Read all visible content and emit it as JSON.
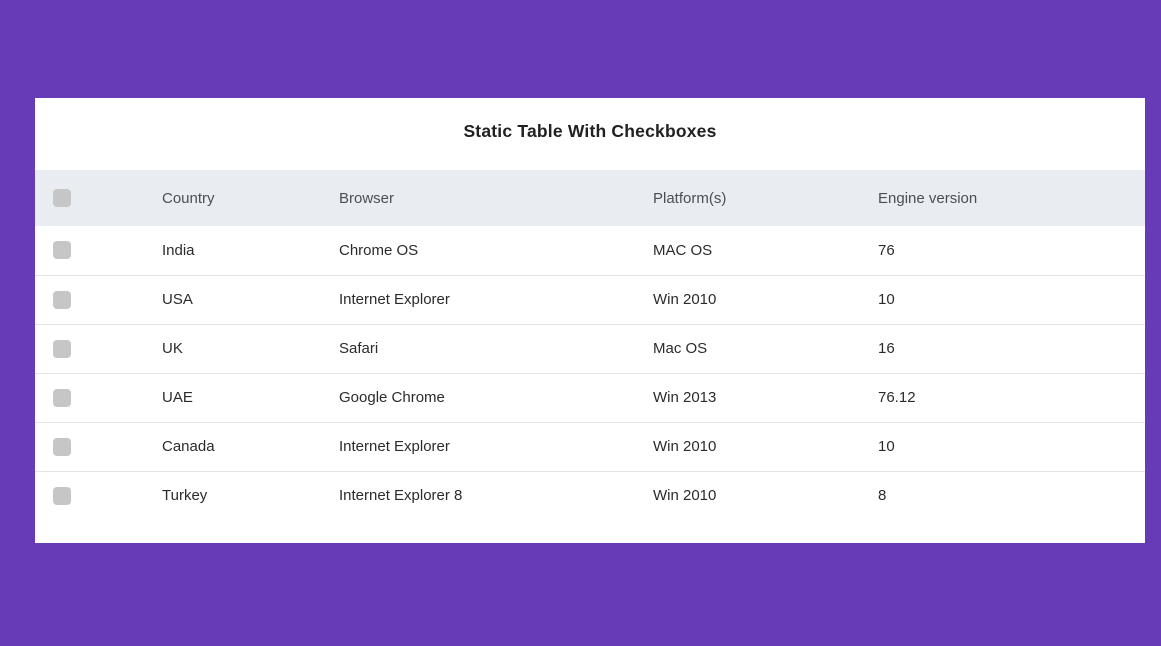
{
  "title": "Static Table With Checkboxes",
  "table": {
    "headers": {
      "country": "Country",
      "browser": "Browser",
      "platform": "Platform(s)",
      "engine": "Engine version"
    },
    "rows": [
      {
        "country": "India",
        "browser": "Chrome OS",
        "platform": "MAC OS",
        "engine": "76"
      },
      {
        "country": "USA",
        "browser": "Internet Explorer",
        "platform": "Win 2010",
        "engine": "10"
      },
      {
        "country": "UK",
        "browser": "Safari",
        "platform": "Mac OS",
        "engine": "16"
      },
      {
        "country": "UAE",
        "browser": "Google Chrome",
        "platform": "Win 2013",
        "engine": "76.12"
      },
      {
        "country": "Canada",
        "browser": "Internet Explorer",
        "platform": "Win 2010",
        "engine": "10"
      },
      {
        "country": "Turkey",
        "browser": "Internet Explorer 8",
        "platform": "Win 2010",
        "engine": "8"
      }
    ]
  },
  "colors": {
    "page_background": "#673ab7",
    "card_background": "#ffffff",
    "header_background": "#e9edf1",
    "checkbox_fill": "#c6c6c6"
  }
}
